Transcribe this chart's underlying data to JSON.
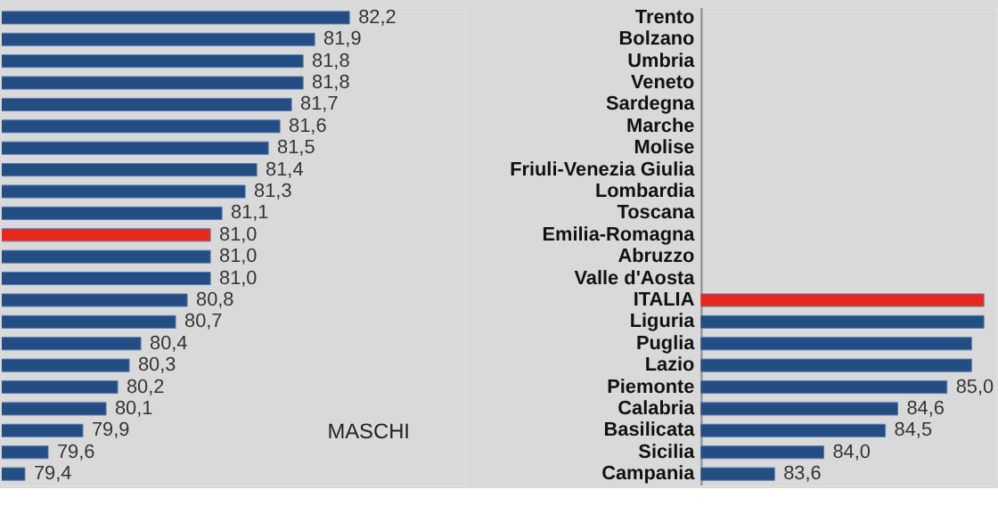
{
  "chart_data": [
    {
      "type": "bar",
      "orientation": "horizontal",
      "title": "MASCHI",
      "tick_labels": false,
      "categories": [
        null,
        null,
        null,
        null,
        null,
        null,
        null,
        null,
        null,
        null,
        null,
        null,
        null,
        null,
        null,
        null,
        null,
        null,
        null,
        null,
        null,
        null
      ],
      "values": [
        82.2,
        81.9,
        81.8,
        81.8,
        81.7,
        81.6,
        81.5,
        81.4,
        81.3,
        81.1,
        81.0,
        81.0,
        81.0,
        80.8,
        80.7,
        80.4,
        80.3,
        80.2,
        80.1,
        79.9,
        79.6,
        79.4
      ],
      "value_labels": [
        "82,2",
        "81,9",
        "81,8",
        "81,8",
        "81,7",
        "81,6",
        "81,5",
        "81,4",
        "81,3",
        "81,1",
        "81,0",
        "81,0",
        "81,0",
        "80,8",
        "80,7",
        "80,4",
        "80,3",
        "80,2",
        "80,1",
        "79,9",
        "79,6",
        "79,4"
      ],
      "colors": [
        "#234d83",
        "#234d83",
        "#234d83",
        "#234d83",
        "#234d83",
        "#234d83",
        "#234d83",
        "#234d83",
        "#234d83",
        "#234d83",
        "#e8281c",
        "#234d83",
        "#234d83",
        "#234d83",
        "#234d83",
        "#234d83",
        "#234d83",
        "#234d83",
        "#234d83",
        "#234d83",
        "#234d83",
        "#234d83"
      ]
    },
    {
      "type": "bar",
      "orientation": "horizontal",
      "tick_labels": "y",
      "categories": [
        "Trento",
        "Bolzano",
        "Umbria",
        "Veneto",
        "Sardegna",
        "Marche",
        "Molise",
        "Friuli-Venezia Giulia",
        "Lombardia",
        "Toscana",
        "Emilia-Romagna",
        "Abruzzo",
        "Valle d'Aosta",
        "ITALIA",
        "Liguria",
        "Puglia",
        "Lazio",
        "Piemonte",
        "Calabria",
        "Basilicata",
        "Sicilia",
        "Campania"
      ],
      "values": [
        null,
        null,
        null,
        null,
        null,
        null,
        null,
        null,
        null,
        null,
        null,
        null,
        null,
        85.3,
        85.3,
        85.2,
        85.2,
        85.0,
        84.6,
        84.5,
        84.0,
        83.6
      ],
      "value_labels": [
        null,
        null,
        null,
        null,
        null,
        null,
        null,
        null,
        null,
        null,
        null,
        null,
        null,
        null,
        null,
        null,
        null,
        "85,0",
        "84,6",
        "84,5",
        "84,0",
        "83,6"
      ],
      "colors": [
        "#234d83",
        "#234d83",
        "#234d83",
        "#234d83",
        "#234d83",
        "#234d83",
        "#234d83",
        "#234d83",
        "#234d83",
        "#234d83",
        "#234d83",
        "#234d83",
        "#234d83",
        "#e8281c",
        "#234d83",
        "#234d83",
        "#234d83",
        "#234d83",
        "#234d83",
        "#234d83",
        "#234d83",
        "#234d83"
      ]
    }
  ]
}
